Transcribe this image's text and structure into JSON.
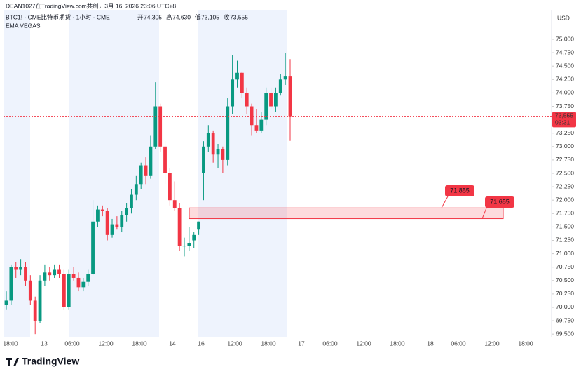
{
  "header": {
    "credit": "DEAN1027在TradingView.com共创，3月 16, 2026 23:06 UTC+8",
    "symbol": "BTC1! · CME比特币期货 · 1小时 · CME",
    "ohlc_legend": [
      {
        "label": "开",
        "value": "74,305"
      },
      {
        "label": "高",
        "value": "74,630"
      },
      {
        "label": "低",
        "value": "73,105"
      },
      {
        "label": "收",
        "value": "73,555"
      }
    ],
    "indicator": "EMA VEGAS"
  },
  "footer": {
    "brand": "TradingView"
  },
  "chart_data": {
    "type": "candlestick",
    "currency": "USD",
    "up_color": "#089981",
    "down_color": "#f23645",
    "open": [
      70050,
      70125,
      70750,
      70700,
      70750,
      70500,
      70125,
      69750,
      70500,
      70650,
      70600,
      70700,
      70625,
      70000,
      70625,
      70550,
      70375,
      70475,
      70625,
      71600,
      71825,
      71800,
      71350,
      71550,
      71500,
      71725,
      71850,
      72100,
      72300,
      72650,
      72450,
      73000,
      73750,
      73000,
      72500,
      72000,
      71850,
      71150,
      71150,
      71250,
      71450,
      72500,
      73000,
      73250,
      72850,
      72950,
      72750,
      73750,
      74250,
      74375,
      74000,
      73750,
      73400,
      73300,
      73500,
      74000,
      73750,
      74000,
      74250,
      74305
    ],
    "high": [
      70300,
      70800,
      70850,
      70900,
      70850,
      70600,
      70200,
      70600,
      70800,
      70750,
      70800,
      70800,
      70700,
      70700,
      70750,
      70650,
      70550,
      70700,
      72000,
      71900,
      71900,
      71850,
      71650,
      71700,
      71800,
      71950,
      72200,
      72450,
      72700,
      72800,
      73200,
      74200,
      73800,
      73100,
      72600,
      72350,
      71950,
      71300,
      71500,
      71400,
      71600,
      73100,
      73400,
      73300,
      73050,
      73000,
      73900,
      74700,
      74600,
      74400,
      74100,
      73800,
      73700,
      73650,
      74100,
      74100,
      74100,
      74350,
      74750,
      74630
    ],
    "low": [
      69950,
      70050,
      70550,
      70600,
      70400,
      70050,
      69500,
      69700,
      70400,
      70500,
      70550,
      70550,
      69950,
      69950,
      70500,
      70300,
      70300,
      70400,
      70600,
      71500,
      71700,
      71250,
      71300,
      71450,
      71400,
      71600,
      71750,
      72000,
      72200,
      72300,
      72400,
      72950,
      72900,
      72300,
      71900,
      71800,
      71050,
      70950,
      71050,
      71100,
      71350,
      72000,
      72900,
      72700,
      72600,
      72500,
      72650,
      73600,
      74100,
      73900,
      73600,
      73200,
      73250,
      73250,
      73400,
      73700,
      73650,
      73950,
      74150,
      73105
    ],
    "close": [
      70125,
      70750,
      70700,
      70750,
      70500,
      70125,
      69750,
      70500,
      70650,
      70600,
      70700,
      70625,
      70000,
      70625,
      70550,
      70375,
      70475,
      70625,
      71600,
      71825,
      71800,
      71350,
      71550,
      71500,
      71725,
      71850,
      72100,
      72300,
      72650,
      72450,
      73000,
      73750,
      73000,
      72500,
      72000,
      71850,
      71150,
      71150,
      71200,
      71350,
      71600,
      73000,
      73250,
      72850,
      72950,
      72750,
      73750,
      74250,
      74375,
      74000,
      73750,
      73400,
      73300,
      73500,
      74000,
      73750,
      74000,
      74250,
      74305,
      73555
    ],
    "ylim": [
      69450,
      75550
    ],
    "yticks": [
      {
        "value": 69500,
        "label": "69,500"
      },
      {
        "value": 69750,
        "label": "69,750"
      },
      {
        "value": 70000,
        "label": "70,000"
      },
      {
        "value": 70250,
        "label": "70,250"
      },
      {
        "value": 70500,
        "label": "70,500"
      },
      {
        "value": 70750,
        "label": "70,750"
      },
      {
        "value": 71000,
        "label": "71,000"
      },
      {
        "value": 71250,
        "label": "71,250"
      },
      {
        "value": 71500,
        "label": "71,500"
      },
      {
        "value": 71750,
        "label": "71,750"
      },
      {
        "value": 72000,
        "label": "72,000"
      },
      {
        "value": 72250,
        "label": "72,250"
      },
      {
        "value": 72500,
        "label": "72,500"
      },
      {
        "value": 72750,
        "label": "72,750"
      },
      {
        "value": 73000,
        "label": "73,000"
      },
      {
        "value": 73250,
        "label": "73,250"
      },
      {
        "value": 73500,
        "label": "73,500"
      },
      {
        "value": 73750,
        "label": "73,750"
      },
      {
        "value": 74000,
        "label": "74,000"
      },
      {
        "value": 74250,
        "label": "74,250"
      },
      {
        "value": 74500,
        "label": "74,500"
      },
      {
        "value": 74750,
        "label": "74,750"
      },
      {
        "value": 75000,
        "label": "75,000"
      }
    ],
    "x_labels": [
      "18:00",
      "13",
      "06:00",
      "12:00",
      "18:00",
      "14",
      "16",
      "12:00",
      "18:00",
      "17",
      "06:00",
      "12:00",
      "18:00",
      "18",
      "06:00",
      "12:00",
      "18:00"
    ],
    "current_price": {
      "value": 73555,
      "label": "73,555",
      "countdown": "03:31"
    },
    "zone": {
      "top": {
        "value": 71855,
        "label": "71,855"
      },
      "bottom": {
        "value": 71655,
        "label": "71,655"
      }
    }
  }
}
